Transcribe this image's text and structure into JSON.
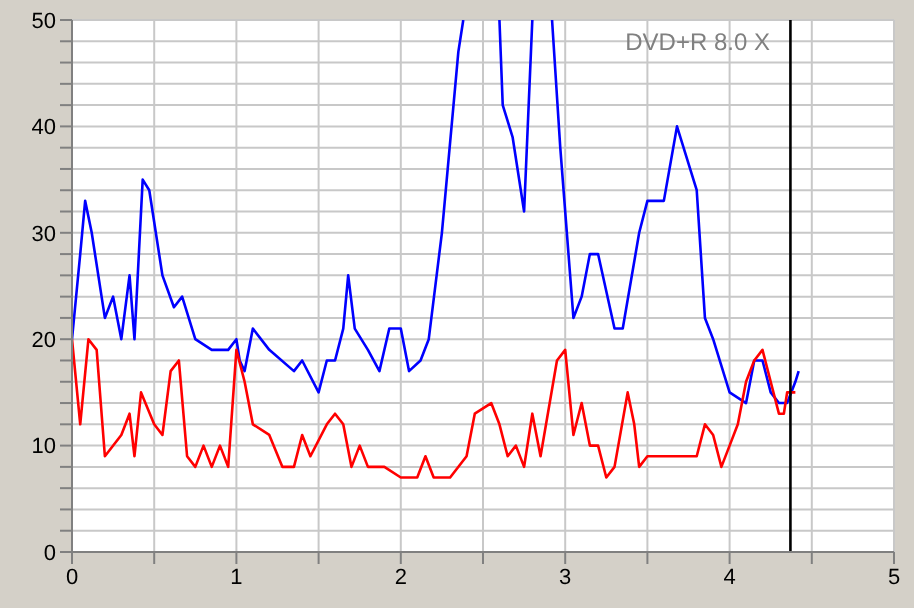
{
  "chart_data": {
    "type": "line",
    "annotations": [
      "DVD+R 8.0 X"
    ],
    "xlim": [
      0,
      5
    ],
    "xticks": [
      0,
      {
        "value": 0.5,
        "label": null
      },
      1,
      {
        "value": 1.5,
        "label": null
      },
      2,
      {
        "value": 2.5,
        "label": null
      },
      3,
      {
        "value": 3.5,
        "label": null
      },
      4,
      {
        "value": 4.5,
        "label": null
      },
      5
    ],
    "ylim": [
      0,
      50
    ],
    "yticks": [
      0,
      {
        "value": 2,
        "label": null
      },
      {
        "value": 4,
        "label": null
      },
      {
        "value": 6,
        "label": null
      },
      {
        "value": 8,
        "label": null
      },
      10,
      {
        "value": 12,
        "label": null
      },
      {
        "value": 14,
        "label": null
      },
      {
        "value": 16,
        "label": null
      },
      {
        "value": 18,
        "label": null
      },
      20,
      {
        "value": 22,
        "label": null
      },
      {
        "value": 24,
        "label": null
      },
      {
        "value": 26,
        "label": null
      },
      {
        "value": 28,
        "label": null
      },
      30,
      {
        "value": 32,
        "label": null
      },
      {
        "value": 34,
        "label": null
      },
      {
        "value": 36,
        "label": null
      },
      {
        "value": 38,
        "label": null
      },
      40,
      {
        "value": 42,
        "label": null
      },
      {
        "value": 44,
        "label": null
      },
      {
        "value": 46,
        "label": null
      },
      {
        "value": 48,
        "label": null
      },
      50
    ],
    "grid": true,
    "marker": "none",
    "line_style": "solid",
    "ref_lines": [
      {
        "axis": "x",
        "value": 4.37,
        "color": "#000000"
      }
    ],
    "series": [
      {
        "color": "#0000ff",
        "x": [
          0,
          0.05,
          0.08,
          0.12,
          0.18,
          0.2,
          0.25,
          0.3,
          0.35,
          0.38,
          0.43,
          0.47,
          0.55,
          0.62,
          0.67,
          0.75,
          0.85,
          0.95,
          1.0,
          1.02,
          1.05,
          1.1,
          1.2,
          1.35,
          1.4,
          1.5,
          1.55,
          1.6,
          1.65,
          1.68,
          1.72,
          1.8,
          1.87,
          1.93,
          2.0,
          2.05,
          2.12,
          2.17,
          2.25,
          2.35,
          2.38,
          2.5,
          2.6,
          2.62,
          2.68,
          2.75,
          2.8,
          2.86,
          2.92,
          2.97,
          3.05,
          3.1,
          3.15,
          3.2,
          3.3,
          3.35,
          3.45,
          3.5,
          3.6,
          3.68,
          3.8,
          3.85,
          3.9,
          4.0,
          4.1,
          4.15,
          4.2,
          4.25,
          4.3,
          4.35,
          4.4,
          4.42
        ],
        "values": [
          20,
          28,
          33,
          30,
          24,
          22,
          24,
          20,
          26,
          20,
          35,
          34,
          26,
          23,
          24,
          20,
          19,
          19,
          20,
          18,
          17,
          21,
          19,
          17,
          18,
          15,
          18,
          18,
          21,
          26,
          21,
          19,
          17,
          21,
          21,
          17,
          18,
          20,
          30,
          47,
          50,
          null,
          50,
          42,
          39,
          32,
          50,
          null,
          50,
          38,
          22,
          24,
          28,
          28,
          21,
          21,
          30,
          33,
          33,
          40,
          34,
          22,
          20,
          15,
          14,
          18,
          18,
          15,
          14,
          14,
          16,
          17
        ]
      },
      {
        "color": "#ff0000",
        "x": [
          0,
          0.05,
          0.1,
          0.15,
          0.2,
          0.3,
          0.35,
          0.38,
          0.42,
          0.5,
          0.55,
          0.6,
          0.65,
          0.7,
          0.75,
          0.8,
          0.85,
          0.9,
          0.95,
          1.0,
          1.05,
          1.1,
          1.2,
          1.28,
          1.35,
          1.4,
          1.45,
          1.55,
          1.6,
          1.65,
          1.7,
          1.75,
          1.8,
          1.9,
          2.0,
          2.1,
          2.15,
          2.2,
          2.3,
          2.4,
          2.45,
          2.55,
          2.6,
          2.65,
          2.7,
          2.75,
          2.8,
          2.85,
          2.95,
          3.0,
          3.05,
          3.1,
          3.15,
          3.2,
          3.25,
          3.3,
          3.38,
          3.42,
          3.45,
          3.5,
          3.8,
          3.85,
          3.9,
          3.95,
          4.0,
          4.05,
          4.1,
          4.15,
          4.2,
          4.25,
          4.3,
          4.33,
          4.35,
          4.4
        ],
        "values": [
          20,
          12,
          20,
          19,
          9,
          11,
          13,
          9,
          15,
          12,
          11,
          17,
          18,
          9,
          8,
          10,
          8,
          10,
          8,
          19,
          16,
          12,
          11,
          8,
          8,
          11,
          9,
          12,
          13,
          12,
          8,
          10,
          8,
          8,
          7,
          7,
          9,
          7,
          7,
          9,
          13,
          14,
          12,
          9,
          10,
          8,
          13,
          9,
          18,
          19,
          11,
          14,
          10,
          10,
          7,
          8,
          15,
          12,
          8,
          9,
          9,
          12,
          11,
          8,
          10,
          12,
          16,
          18,
          19,
          16,
          13,
          13,
          15,
          15
        ]
      }
    ]
  }
}
